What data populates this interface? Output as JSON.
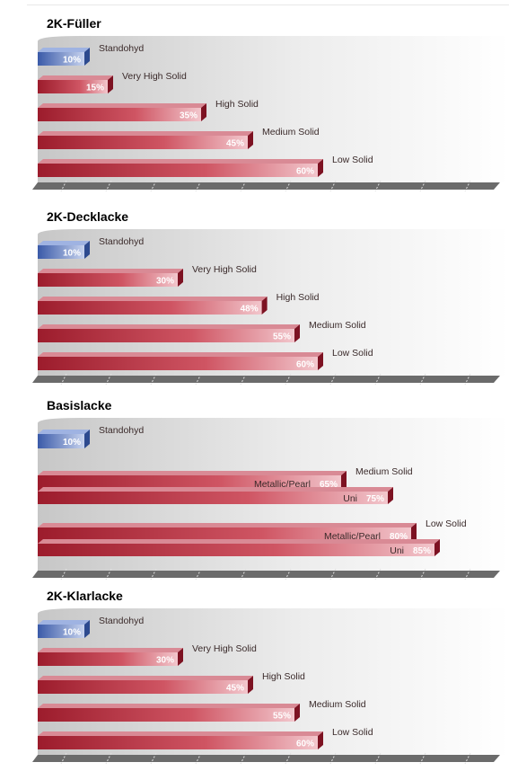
{
  "colors": {
    "bar_red_dark": "#9c1c2c",
    "bar_red_light": "#f2c6cc",
    "bar_blue_dark": "#3a5aa8",
    "bar_blue_light": "#c6d2ee",
    "floor": "#6b6b6b"
  },
  "chart_data": [
    {
      "type": "bar",
      "title": "2K-Füller",
      "categories": [
        "Standohyd",
        "Very High Solid",
        "High Solid",
        "Medium Solid",
        "Low Solid"
      ],
      "values": [
        10,
        15,
        35,
        45,
        60
      ],
      "value_labels": [
        "10%",
        "15%",
        "35%",
        "45%",
        "60%"
      ]
    },
    {
      "type": "bar",
      "title": "2K-Decklacke",
      "categories": [
        "Standohyd",
        "Very High Solid",
        "High Solid",
        "Medium Solid",
        "Low Solid"
      ],
      "values": [
        10,
        30,
        48,
        55,
        60
      ],
      "value_labels": [
        "10%",
        "30%",
        "48%",
        "55%",
        "60%"
      ]
    },
    {
      "type": "bar",
      "title": "Basislacke",
      "categories": [
        "Standohyd",
        "Medium Solid",
        "Low Solid"
      ],
      "series": [
        {
          "group": "Standohyd",
          "sub": "",
          "value": 10,
          "value_label": "10%"
        },
        {
          "group": "Medium Solid",
          "sub": "Metallic/Pearl",
          "value": 65,
          "value_label": "65%"
        },
        {
          "group": "Medium Solid",
          "sub": "Uni",
          "value": 75,
          "value_label": "75%"
        },
        {
          "group": "Low Solid",
          "sub": "Metallic/Pearl",
          "value": 80,
          "value_label": "80%"
        },
        {
          "group": "Low Solid",
          "sub": "Uni",
          "value": 85,
          "value_label": "85%"
        }
      ]
    },
    {
      "type": "bar",
      "title": "2K-Klarlacke",
      "categories": [
        "Standohyd",
        "Very High Solid",
        "High Solid",
        "Medium Solid",
        "Low Solid"
      ],
      "values": [
        10,
        30,
        45,
        55,
        60
      ],
      "value_labels": [
        "10%",
        "30%",
        "45%",
        "55%",
        "60%"
      ]
    }
  ]
}
